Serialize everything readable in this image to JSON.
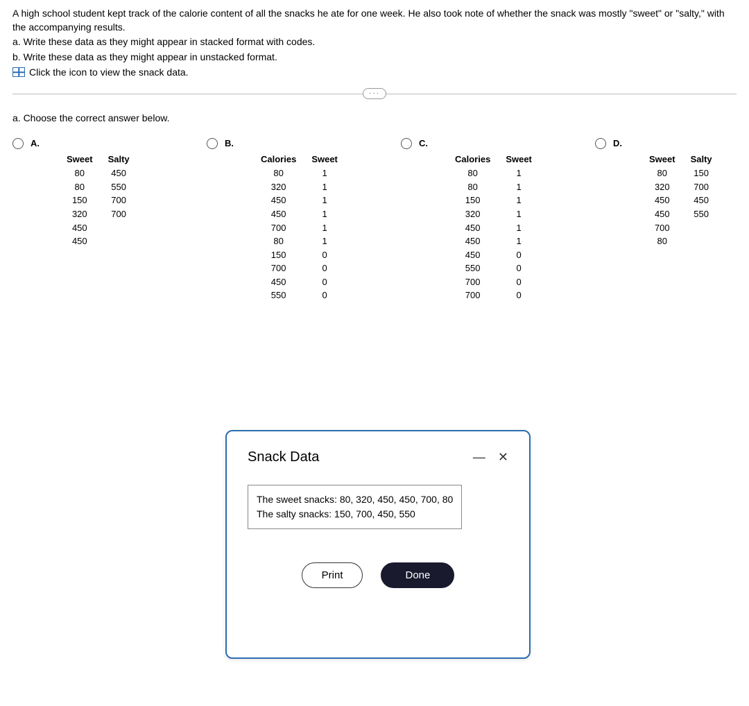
{
  "question": {
    "intro": "A high school student kept track of the calorie content of all the snacks he ate for one week. He also took note of whether the snack was mostly \"sweet\" or \"salty,\" with the accompanying results.",
    "part_a": "a. Write these data as they might appear in stacked format with codes.",
    "part_b": "b. Write these data as they might appear in unstacked format.",
    "icon_text": "Click the icon to view the snack data."
  },
  "divider_glyph": "···",
  "prompt_a": "a. Choose the correct answer below.",
  "options": {
    "A": {
      "label": "A.",
      "headers": [
        "Sweet",
        "Salty"
      ],
      "rows": [
        [
          "80",
          "450"
        ],
        [
          "80",
          "550"
        ],
        [
          "150",
          "700"
        ],
        [
          "320",
          "700"
        ],
        [
          "450",
          ""
        ],
        [
          "450",
          ""
        ]
      ]
    },
    "B": {
      "label": "B.",
      "headers": [
        "Calories",
        "Sweet"
      ],
      "rows": [
        [
          "80",
          "1"
        ],
        [
          "320",
          "1"
        ],
        [
          "450",
          "1"
        ],
        [
          "450",
          "1"
        ],
        [
          "700",
          "1"
        ],
        [
          "80",
          "1"
        ],
        [
          "150",
          "0"
        ],
        [
          "700",
          "0"
        ],
        [
          "450",
          "0"
        ],
        [
          "550",
          "0"
        ]
      ]
    },
    "C": {
      "label": "C.",
      "headers": [
        "Calories",
        "Sweet"
      ],
      "rows": [
        [
          "80",
          "1"
        ],
        [
          "80",
          "1"
        ],
        [
          "150",
          "1"
        ],
        [
          "320",
          "1"
        ],
        [
          "450",
          "1"
        ],
        [
          "450",
          "1"
        ],
        [
          "450",
          "0"
        ],
        [
          "550",
          "0"
        ],
        [
          "700",
          "0"
        ],
        [
          "700",
          "0"
        ]
      ]
    },
    "D": {
      "label": "D.",
      "headers": [
        "Sweet",
        "Salty"
      ],
      "rows": [
        [
          "80",
          "150"
        ],
        [
          "320",
          "700"
        ],
        [
          "450",
          "450"
        ],
        [
          "450",
          "550"
        ],
        [
          "700",
          ""
        ],
        [
          "80",
          ""
        ]
      ]
    }
  },
  "modal": {
    "title": "Snack Data",
    "line1": "The sweet snacks: 80, 320, 450, 450, 700, 80",
    "line2": "The salty snacks: 150, 700, 450, 550",
    "print": "Print",
    "done": "Done",
    "minimize": "—",
    "close": "✕"
  }
}
